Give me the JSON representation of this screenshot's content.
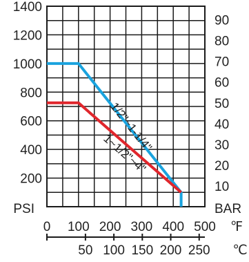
{
  "chart_data": {
    "type": "line",
    "xlabel": "°F",
    "xlabel_secondary": "°C",
    "ylabel": "PSI",
    "ylabel_secondary": "BAR",
    "xlim": [
      0,
      500
    ],
    "ylim": [
      0,
      1400
    ],
    "x_ticks": [
      "0",
      "100",
      "200",
      "300",
      "400",
      "500"
    ],
    "x_unit": "℉",
    "x2_ticks": [
      "50",
      "100",
      "150",
      "200",
      "250"
    ],
    "x2_unit": "℃",
    "y_ticks": [
      "200",
      "400",
      "600",
      "800",
      "1000",
      "1200",
      "1400"
    ],
    "y_unit": "PSI",
    "y2_ticks": [
      "10",
      "20",
      "30",
      "40",
      "50",
      "60",
      "70",
      "80",
      "90"
    ],
    "y2_unit": "BAR",
    "grid": true,
    "series": [
      {
        "name": "1/2\"~1-1/4\"",
        "color": "#1aa3de",
        "points": [
          [
            0,
            1000
          ],
          [
            100,
            1000
          ],
          [
            425,
            100
          ],
          [
            425,
            0
          ]
        ]
      },
      {
        "name": "1~1/2\"~4\"",
        "color": "#e0262c",
        "points": [
          [
            0,
            725
          ],
          [
            100,
            725
          ],
          [
            425,
            100
          ]
        ]
      }
    ]
  }
}
